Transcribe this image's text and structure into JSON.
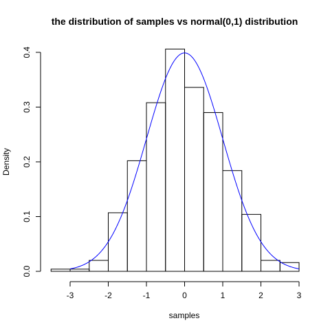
{
  "chart_data": {
    "type": "bar",
    "title": "the distribution of samples vs normal(0,1) distribution",
    "xlabel": "samples",
    "ylabel": "Density",
    "xlim": [
      -3.5,
      3
    ],
    "ylim": [
      0,
      0.4
    ],
    "x_ticks": [
      -3,
      -2,
      -1,
      0,
      1,
      2,
      3
    ],
    "y_ticks": [
      0.0,
      0.1,
      0.2,
      0.3,
      0.4
    ],
    "x_tick_labels": [
      "-3",
      "-2",
      "-1",
      "0",
      "1",
      "2",
      "3"
    ],
    "y_tick_labels": [
      "0.0",
      "0.1",
      "0.2",
      "0.3",
      "0.4"
    ],
    "grid": false,
    "histogram": {
      "bin_width": 0.5,
      "bins": [
        {
          "start": -3.5,
          "end": -3.0,
          "density": 0.004
        },
        {
          "start": -3.0,
          "end": -2.5,
          "density": 0.004
        },
        {
          "start": -2.5,
          "end": -2.0,
          "density": 0.02
        },
        {
          "start": -2.0,
          "end": -1.5,
          "density": 0.107
        },
        {
          "start": -1.5,
          "end": -1.0,
          "density": 0.202
        },
        {
          "start": -1.0,
          "end": -0.5,
          "density": 0.308
        },
        {
          "start": -0.5,
          "end": 0.0,
          "density": 0.406
        },
        {
          "start": 0.0,
          "end": 0.5,
          "density": 0.336
        },
        {
          "start": 0.5,
          "end": 1.0,
          "density": 0.29
        },
        {
          "start": 1.0,
          "end": 1.5,
          "density": 0.184
        },
        {
          "start": 1.5,
          "end": 2.0,
          "density": 0.104
        },
        {
          "start": 2.0,
          "end": 2.5,
          "density": 0.02
        },
        {
          "start": 2.5,
          "end": 3.0,
          "density": 0.016
        }
      ]
    },
    "curve": {
      "type": "line",
      "distribution": "normal",
      "mean": 0,
      "sd": 1,
      "x_range": [
        -3,
        3
      ],
      "color": "#0000ff"
    }
  }
}
